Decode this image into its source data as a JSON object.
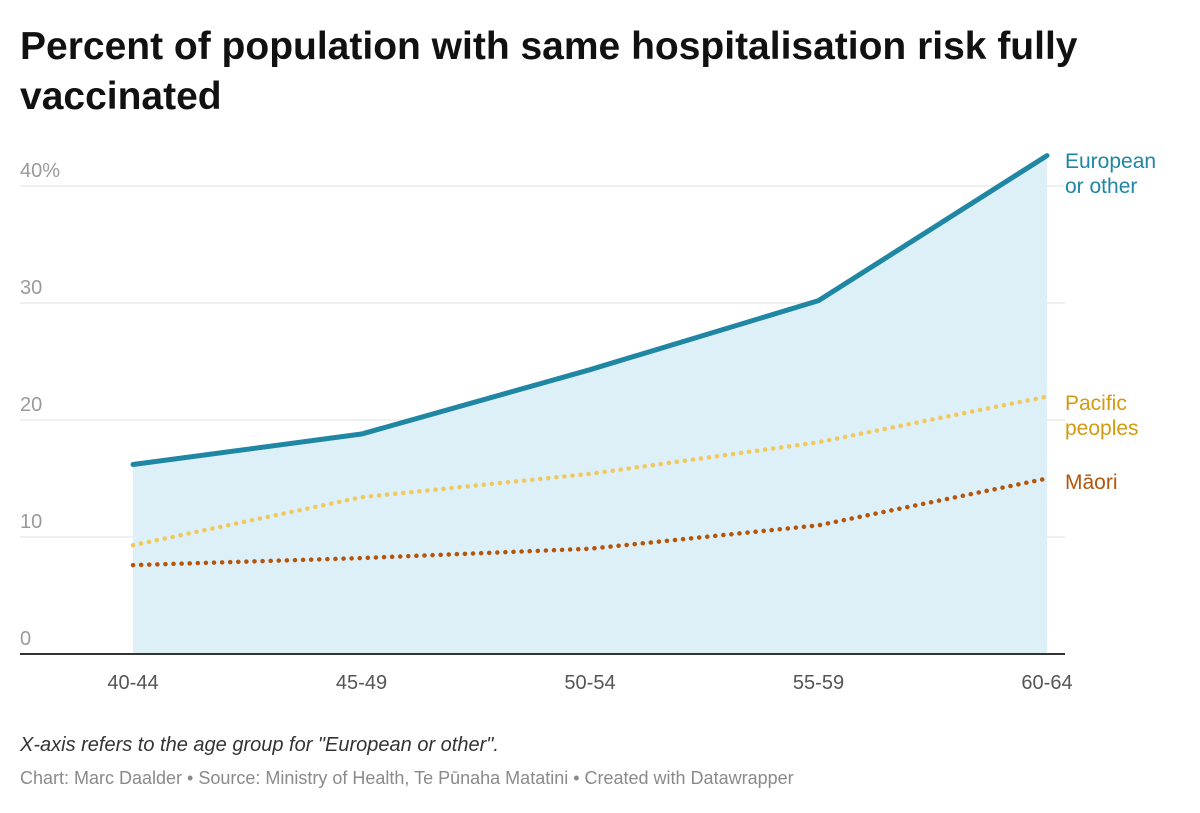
{
  "title": "Percent of population with same hospitalisation risk fully vaccinated",
  "footer": {
    "note": "X-axis refers to the age group for \"European or other\".",
    "credits": "Chart: Marc Daalder • Source: Ministry of Health, Te Pūnaha Matatini • Created with Datawrapper"
  },
  "chart_data": {
    "type": "line",
    "title": "Percent of population with same hospitalisation risk fully vaccinated",
    "categories": [
      "40-44",
      "45-49",
      "50-54",
      "55-59",
      "60-64"
    ],
    "ylim": [
      0,
      40
    ],
    "yticks": [
      {
        "value": 0,
        "label": "0"
      },
      {
        "value": 10,
        "label": "10"
      },
      {
        "value": 20,
        "label": "20"
      },
      {
        "value": 30,
        "label": "30"
      },
      {
        "value": 40,
        "label": "40%"
      }
    ],
    "grid": true,
    "legend": "direct labels at right end of lines",
    "series": [
      {
        "name": "European or other",
        "label_lines": [
          "European",
          "or other"
        ],
        "values": [
          16.2,
          18.8,
          24.3,
          30.2,
          42.6
        ],
        "color": "#1f86a3",
        "style": "solid",
        "area_fill": "#ddf0f7"
      },
      {
        "name": "Pacific peoples",
        "label_lines": [
          "Pacific",
          "peoples"
        ],
        "values": [
          9.3,
          13.4,
          15.4,
          18.1,
          22.0
        ],
        "color": "#f2c75c",
        "label_color": "#d39a0f",
        "style": "dotted"
      },
      {
        "name": "Māori",
        "label_lines": [
          "Māori"
        ],
        "values": [
          7.6,
          8.2,
          9.0,
          11.0,
          15.0
        ],
        "color": "#b5550b",
        "label_color": "#b5550b",
        "style": "dotted"
      }
    ]
  }
}
